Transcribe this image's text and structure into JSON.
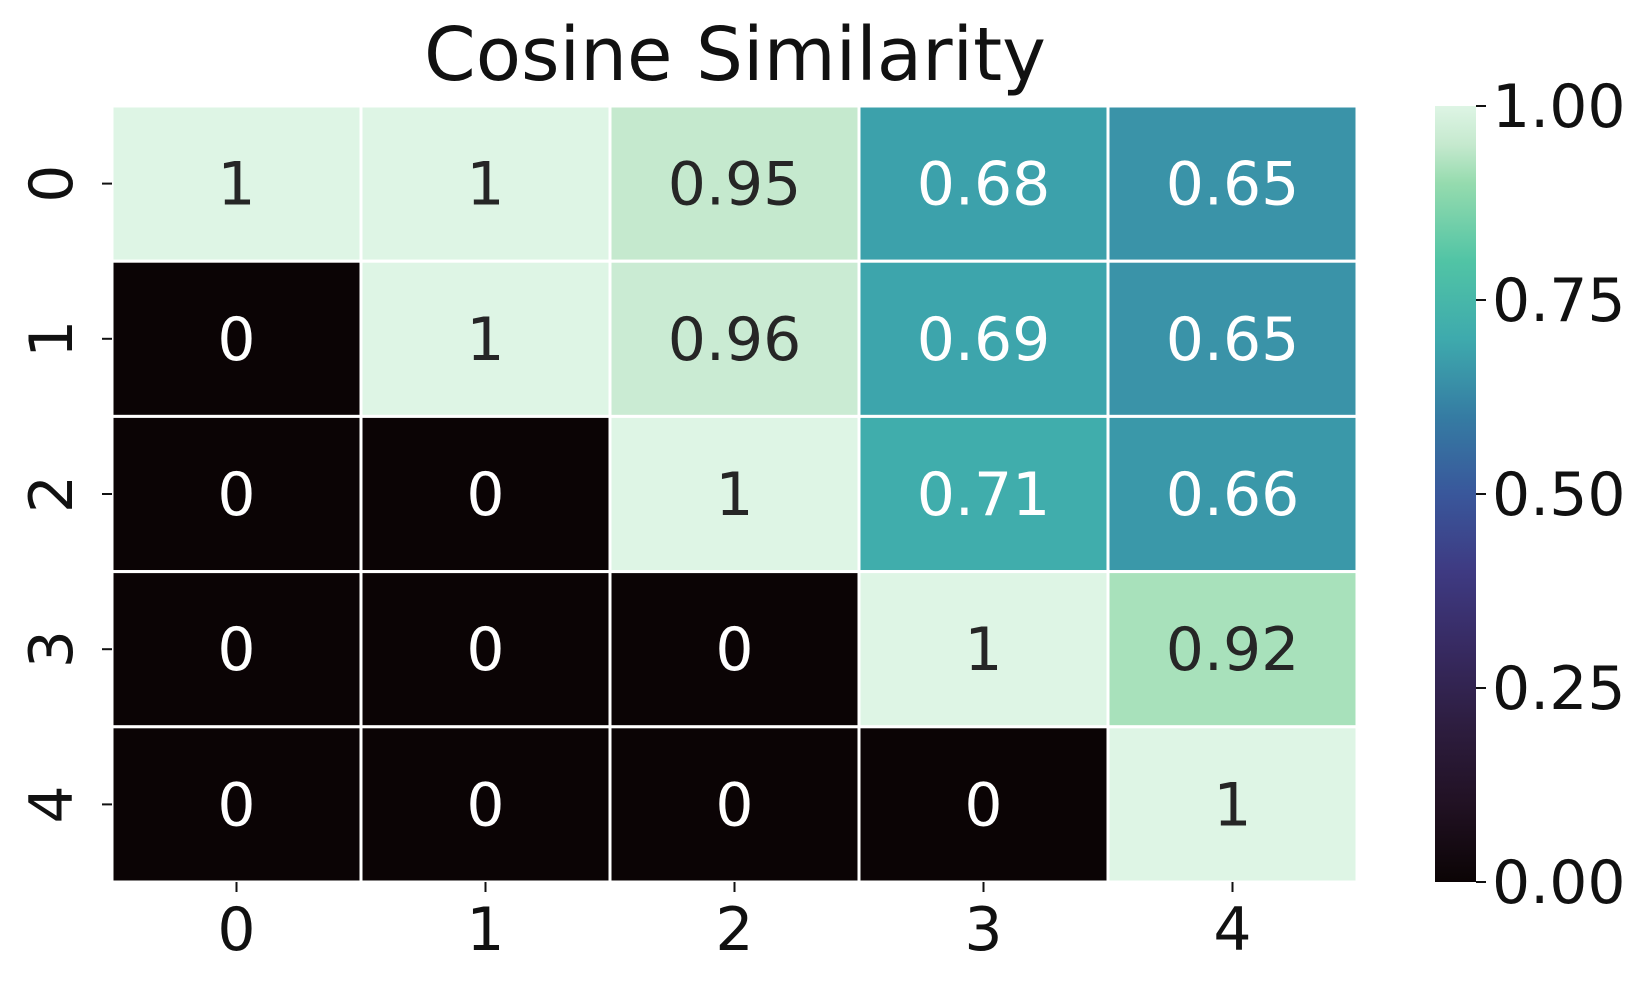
{
  "chart_data": {
    "type": "heatmap",
    "title": "Cosine Similarity",
    "xlabel": "",
    "ylabel": "",
    "x_categories": [
      "0",
      "1",
      "2",
      "3",
      "4"
    ],
    "y_categories": [
      "0",
      "1",
      "2",
      "3",
      "4"
    ],
    "values": [
      [
        1,
        1,
        0.95,
        0.68,
        0.65
      ],
      [
        0,
        1,
        0.96,
        0.69,
        0.65
      ],
      [
        0,
        0,
        1,
        0.71,
        0.66
      ],
      [
        0,
        0,
        0,
        1,
        0.92
      ],
      [
        0,
        0,
        0,
        0,
        1
      ]
    ],
    "cell_labels": [
      [
        "1",
        "1",
        "0.95",
        "0.68",
        "0.65"
      ],
      [
        "0",
        "1",
        "0.96",
        "0.69",
        "0.65"
      ],
      [
        "0",
        "0",
        "1",
        "0.71",
        "0.66"
      ],
      [
        "0",
        "0",
        "0",
        "1",
        "0.92"
      ],
      [
        "0",
        "0",
        "0",
        "0",
        "1"
      ]
    ],
    "colorbar": {
      "min": 0,
      "max": 1,
      "ticks": [
        0,
        0.25,
        0.5,
        0.75,
        1
      ],
      "tick_labels": [
        "0.00",
        "0.25",
        "0.50",
        "0.75",
        "1.00"
      ],
      "colormap": "mako",
      "position": "right"
    },
    "colors": {
      "light_text": "#ffffff",
      "dark_text": "#262626",
      "cell_border": "#ffffff"
    }
  }
}
